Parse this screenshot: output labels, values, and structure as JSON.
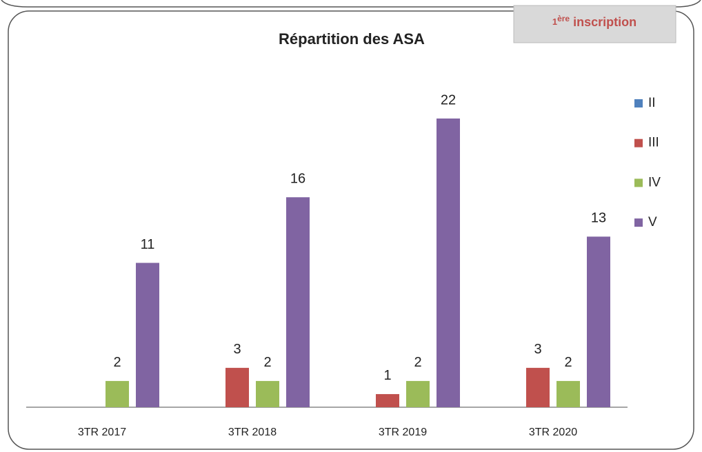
{
  "chart_data": {
    "type": "bar",
    "title": "Répartition des ASA",
    "badge": {
      "number": "1",
      "suffix": "ère",
      "text": "inscription"
    },
    "categories": [
      "3TR 2017",
      "3TR 2018",
      "3TR 2019",
      "3TR 2020"
    ],
    "series": [
      {
        "name": "II",
        "color": "#4f81bd",
        "values": [
          null,
          null,
          null,
          null
        ]
      },
      {
        "name": "III",
        "color": "#c0504d",
        "values": [
          null,
          3,
          1,
          3
        ]
      },
      {
        "name": "IV",
        "color": "#9bbb59",
        "values": [
          2,
          2,
          2,
          2
        ]
      },
      {
        "name": "V",
        "color": "#8064a2",
        "values": [
          11,
          16,
          22,
          13
        ]
      }
    ],
    "legend": "right"
  }
}
